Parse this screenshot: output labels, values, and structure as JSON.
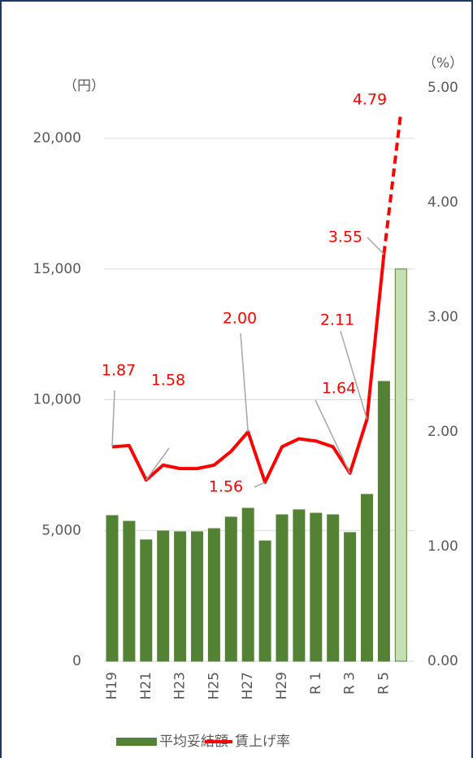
{
  "chart_data": {
    "type": "bar_line",
    "y_unit_label": "（円）",
    "y2_unit_label": "（%）",
    "categories": [
      "H19",
      null,
      "H21",
      null,
      "H23",
      null,
      "H25",
      null,
      "H27",
      null,
      "H29",
      null,
      "R 1",
      null,
      "R 3",
      null,
      "R 5",
      null
    ],
    "series": [
      {
        "name": "平均妥結額",
        "type": "bar",
        "color": "#548235",
        "colors": [
          "#548235",
          "#548235",
          "#548235",
          "#548235",
          "#548235",
          "#548235",
          "#548235",
          "#548235",
          "#548235",
          "#548235",
          "#548235",
          "#548235",
          "#548235",
          "#548235",
          "#548235",
          "#548235",
          "#548235",
          "#c5e0b4"
        ],
        "values": [
          5570,
          5350,
          4640,
          4980,
          4950,
          4950,
          5070,
          5510,
          5850,
          4600,
          5600,
          5790,
          5660,
          5600,
          4920,
          6380,
          10700,
          15000
        ]
      },
      {
        "name": "賃上げ率",
        "type": "line",
        "axis": "y2",
        "color": "#ff0000",
        "dash_last": true,
        "values": [
          1.87,
          1.88,
          1.58,
          1.71,
          1.68,
          1.68,
          1.71,
          1.83,
          2.0,
          1.56,
          1.87,
          1.94,
          1.92,
          1.87,
          1.64,
          2.11,
          3.55,
          4.79
        ],
        "value_labels": [
          "1.87",
          null,
          "1.58",
          null,
          null,
          null,
          null,
          null,
          "2.00",
          "1.56",
          null,
          null,
          null,
          null,
          "1.64",
          "2.11",
          "3.55",
          "4.79"
        ]
      }
    ],
    "ylim": [
      0,
      20000
    ],
    "yticks": [
      0,
      {
        "value": 5000,
        "label": "5,000"
      },
      {
        "value": 10000,
        "label": "10,000"
      },
      {
        "value": 15000,
        "label": "15,000"
      },
      {
        "value": 20000,
        "label": "20,000"
      }
    ],
    "y2lim": [
      0,
      5
    ],
    "y2ticks": [
      {
        "value": 0,
        "label": "0.00"
      },
      {
        "value": 1,
        "label": "1.00"
      },
      {
        "value": 2,
        "label": "2.00"
      },
      {
        "value": 3,
        "label": "3.00"
      },
      {
        "value": 4,
        "label": "4.00"
      },
      {
        "value": 5,
        "label": "5.00"
      }
    ],
    "grid": true,
    "legend": "bottom"
  }
}
